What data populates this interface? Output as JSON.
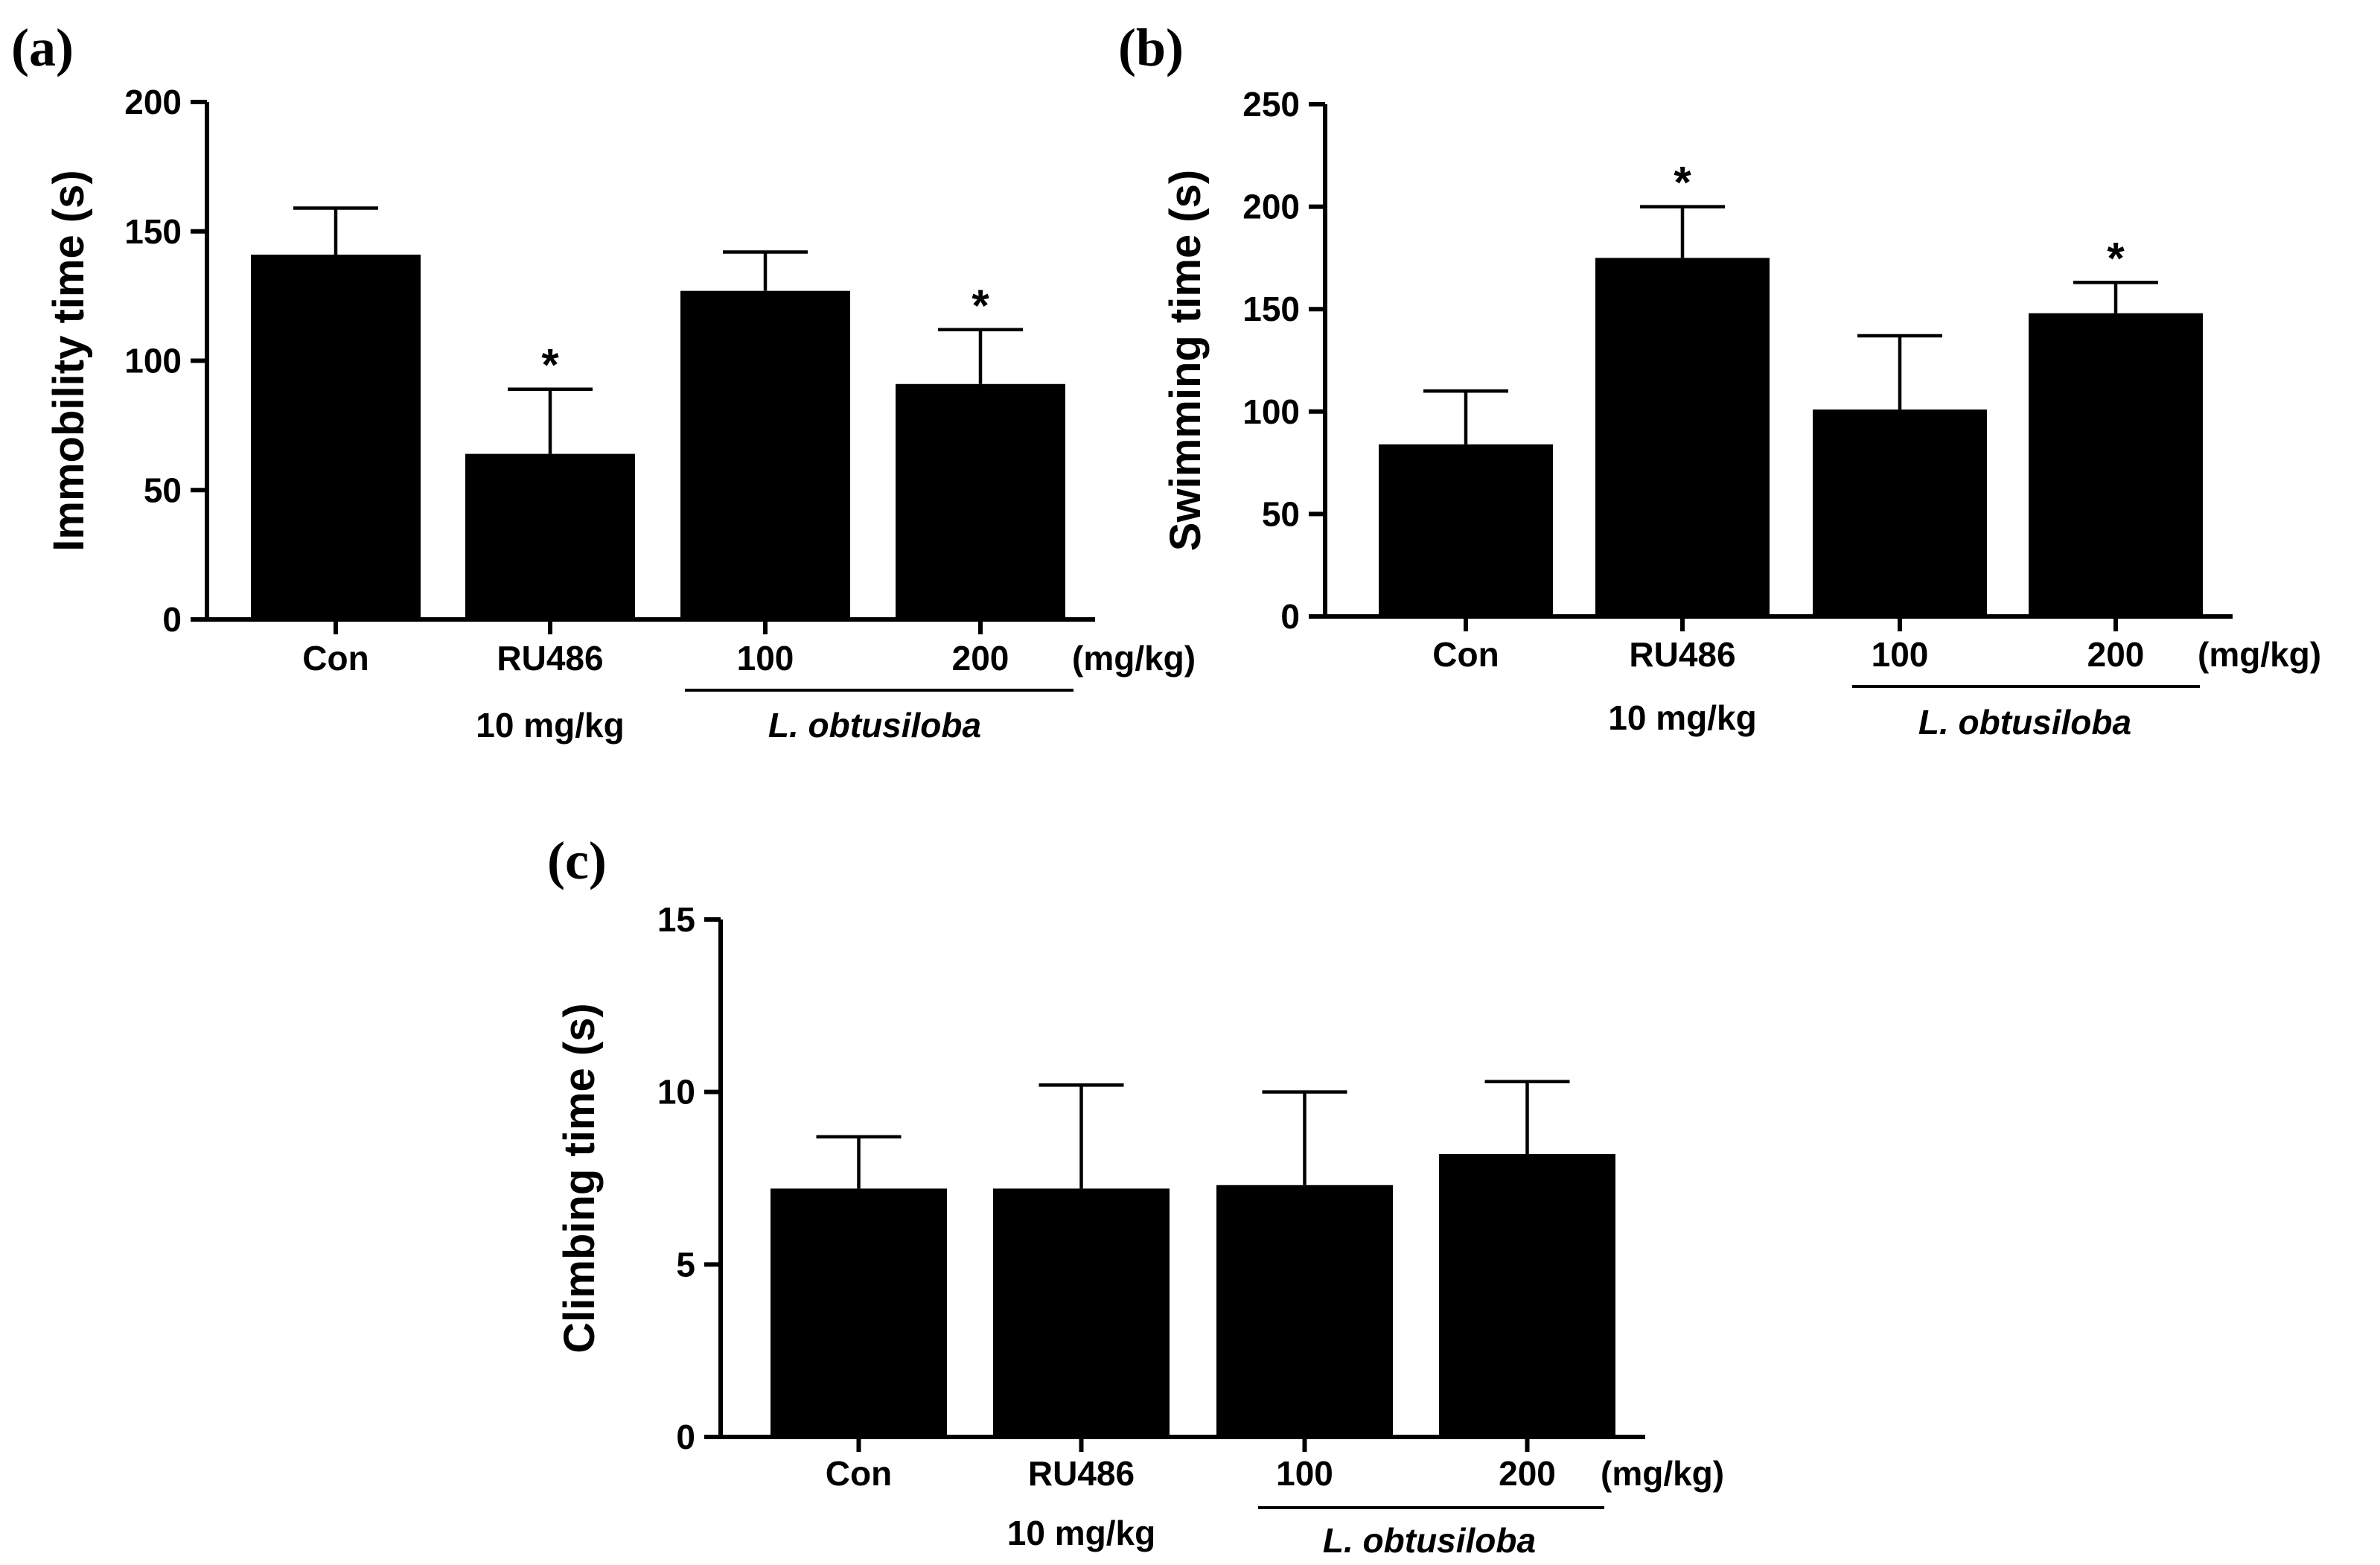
{
  "chart_data": [
    {
      "type": "bar",
      "panel_label": "(a)",
      "ylabel": "Immobility time (s)",
      "ylim": [
        0,
        200
      ],
      "yticks": [
        "0",
        "50",
        "100",
        "150",
        "200"
      ],
      "categories": [
        "Con",
        "RU486",
        "100",
        "200"
      ],
      "category_sublabels": [
        "",
        "10 mg/kg",
        "",
        ""
      ],
      "unit_label": "(mg/kg)",
      "group_label": "L. obtusiloba",
      "values": [
        141,
        64,
        127,
        91
      ],
      "errors": [
        18,
        25,
        15,
        21
      ],
      "significance": [
        "",
        "*",
        "",
        "*"
      ],
      "bar_color": "#000000"
    },
    {
      "type": "bar",
      "panel_label": "(b)",
      "ylabel": "Swimming time (s)",
      "ylim": [
        0,
        250
      ],
      "yticks": [
        "0",
        "50",
        "100",
        "150",
        "200",
        "250"
      ],
      "categories": [
        "Con",
        "RU486",
        "100",
        "200"
      ],
      "category_sublabels": [
        "",
        "10 mg/kg",
        "",
        ""
      ],
      "unit_label": "(mg/kg)",
      "group_label": "L. obtusiloba",
      "values": [
        84,
        175,
        101,
        148
      ],
      "errors": [
        26,
        25,
        36,
        15
      ],
      "significance": [
        "",
        "*",
        "",
        "*"
      ],
      "bar_color": "#000000"
    },
    {
      "type": "bar",
      "panel_label": "(c)",
      "ylabel": "Climbing time (s)",
      "ylim": [
        0,
        15
      ],
      "yticks": [
        "0",
        "5",
        "10",
        "15"
      ],
      "categories": [
        "Con",
        "RU486",
        "100",
        "200"
      ],
      "category_sublabels": [
        "",
        "10 mg/kg",
        "",
        ""
      ],
      "unit_label": "(mg/kg)",
      "group_label": "L. obtusiloba",
      "values": [
        7.2,
        7.2,
        7.3,
        8.2
      ],
      "errors": [
        1.5,
        3.0,
        2.7,
        2.1
      ],
      "significance": [
        "",
        "",
        "",
        ""
      ],
      "bar_color": "#000000"
    }
  ]
}
